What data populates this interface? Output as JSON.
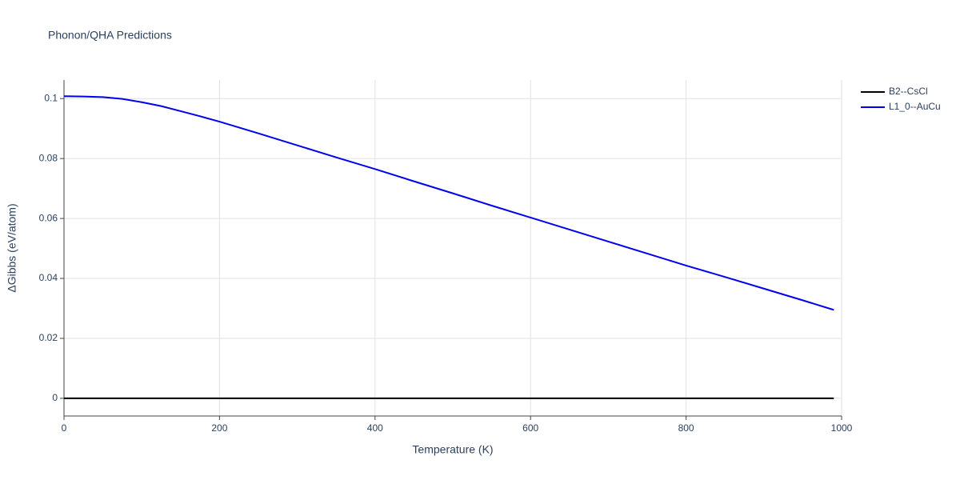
{
  "chart_data": {
    "type": "line",
    "title": "Phonon/QHA Predictions",
    "x_label": "Temperature (K)",
    "y_label": "ΔGibbs (eV/atom)",
    "x": [
      0,
      25,
      50,
      75,
      100,
      125,
      150,
      175,
      200,
      250,
      300,
      350,
      400,
      450,
      500,
      550,
      600,
      650,
      700,
      750,
      800,
      850,
      900,
      950,
      990
    ],
    "series": [
      {
        "name": "B2--CsCl",
        "color": "#000000",
        "values": [
          0,
          0,
          0,
          0,
          0,
          0,
          0,
          0,
          0,
          0,
          0,
          0,
          0,
          0,
          0,
          0,
          0,
          0,
          0,
          0,
          0,
          0,
          0,
          0,
          0
        ]
      },
      {
        "name": "L1_0--AuCu",
        "color": "#0000ee",
        "values": [
          0.1008,
          0.1007,
          0.1005,
          0.0999,
          0.0988,
          0.0975,
          0.0958,
          0.0941,
          0.0923,
          0.0884,
          0.0844,
          0.0804,
          0.0765,
          0.0724,
          0.0684,
          0.0643,
          0.0603,
          0.0563,
          0.0523,
          0.0483,
          0.0443,
          0.0405,
          0.0366,
          0.0327,
          0.0295
        ]
      }
    ],
    "xlim": [
      0,
      1000
    ],
    "xticks": [
      0,
      200,
      400,
      600,
      800,
      1000
    ],
    "ylim": [
      -0.0059,
      0.1062
    ],
    "yticks": [
      0,
      0.02,
      0.04,
      0.06,
      0.08,
      0.1
    ],
    "grid": true,
    "legend_position": "top-right"
  }
}
